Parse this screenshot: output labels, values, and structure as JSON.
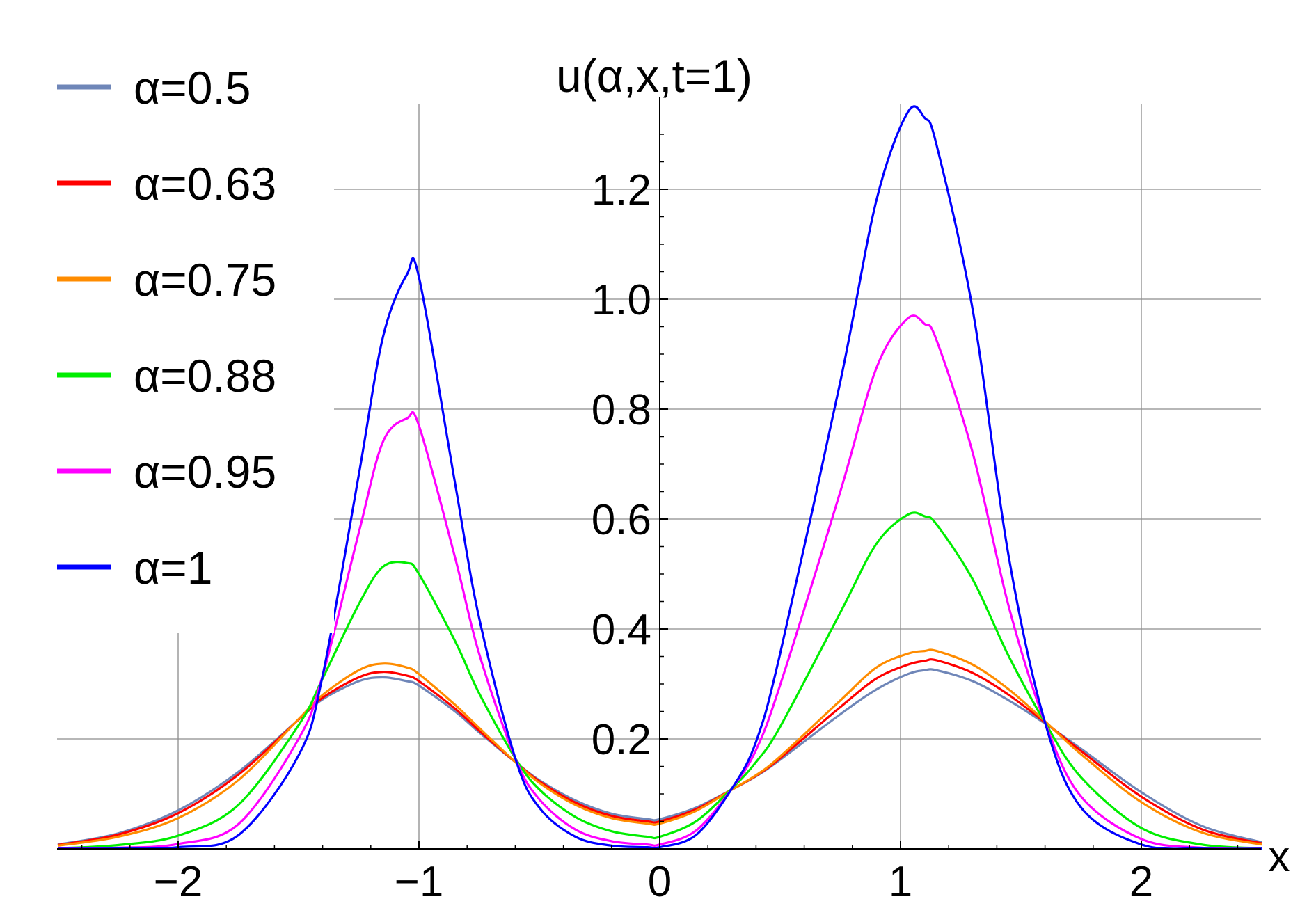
{
  "chart_data": {
    "type": "line",
    "title": "u(α,x,t=1)",
    "xlabel": "x",
    "ylabel": "",
    "xlim": [
      -2.5,
      2.5
    ],
    "ylim": [
      0,
      1.35
    ],
    "xticks": [
      -2,
      -1,
      0,
      1,
      2
    ],
    "xtick_labels": [
      "−2",
      "−1",
      "0",
      "1",
      "2"
    ],
    "yticks": [
      0.2,
      0.4,
      0.6,
      0.8,
      1.0,
      1.2
    ],
    "ytick_labels": [
      "0.2",
      "0.4",
      "0.6",
      "0.8",
      "1.0",
      "1.2"
    ],
    "grid": true,
    "legend_position": "top-left",
    "x": [
      -2.5,
      -2.25,
      -2.0,
      -1.75,
      -1.5,
      -1.4,
      -1.25,
      -1.15,
      -1.05,
      -1.0,
      -0.85,
      -0.75,
      -0.6,
      -0.5,
      -0.35,
      -0.2,
      -0.05,
      0.0,
      0.15,
      0.3,
      0.4,
      0.5,
      0.75,
      0.9,
      1.03,
      1.1,
      1.15,
      1.3,
      1.45,
      1.6,
      1.75,
      2.0,
      2.25,
      2.5
    ],
    "series": [
      {
        "name": "α=0.5",
        "color": "#6f86b8",
        "values": [
          0.008,
          0.028,
          0.07,
          0.14,
          0.235,
          0.272,
          0.305,
          0.312,
          0.305,
          0.297,
          0.25,
          0.212,
          0.158,
          0.125,
          0.088,
          0.064,
          0.054,
          0.054,
          0.075,
          0.108,
          0.132,
          0.162,
          0.245,
          0.29,
          0.318,
          0.325,
          0.325,
          0.305,
          0.27,
          0.228,
          0.182,
          0.103,
          0.042,
          0.012
        ]
      },
      {
        "name": "α=0.63",
        "color": "#ff0000",
        "values": [
          0.007,
          0.026,
          0.065,
          0.135,
          0.235,
          0.275,
          0.312,
          0.322,
          0.315,
          0.305,
          0.255,
          0.215,
          0.158,
          0.123,
          0.084,
          0.06,
          0.05,
          0.05,
          0.072,
          0.108,
          0.133,
          0.165,
          0.258,
          0.31,
          0.335,
          0.342,
          0.343,
          0.32,
          0.28,
          0.23,
          0.178,
          0.095,
          0.036,
          0.01
        ]
      },
      {
        "name": "α=0.75",
        "color": "#ff8c00",
        "values": [
          0.006,
          0.022,
          0.056,
          0.125,
          0.236,
          0.28,
          0.325,
          0.337,
          0.33,
          0.318,
          0.262,
          0.22,
          0.158,
          0.12,
          0.08,
          0.056,
          0.046,
          0.046,
          0.069,
          0.108,
          0.134,
          0.168,
          0.27,
          0.33,
          0.355,
          0.36,
          0.36,
          0.335,
          0.29,
          0.232,
          0.172,
          0.085,
          0.03,
          0.008
        ]
      },
      {
        "name": "α=0.88",
        "color": "#00ee00",
        "values": [
          0.001,
          0.007,
          0.024,
          0.08,
          0.225,
          0.31,
          0.445,
          0.513,
          0.52,
          0.5,
          0.378,
          0.283,
          0.165,
          0.108,
          0.058,
          0.032,
          0.022,
          0.022,
          0.05,
          0.11,
          0.158,
          0.222,
          0.43,
          0.555,
          0.608,
          0.605,
          0.59,
          0.49,
          0.35,
          0.23,
          0.13,
          0.038,
          0.008,
          0.001
        ]
      },
      {
        "name": "α=0.95",
        "color": "#ff00ff",
        "values": [
          0.0005,
          0.002,
          0.009,
          0.045,
          0.2,
          0.315,
          0.575,
          0.74,
          0.783,
          0.77,
          0.53,
          0.355,
          0.165,
          0.09,
          0.035,
          0.014,
          0.008,
          0.008,
          0.033,
          0.11,
          0.18,
          0.298,
          0.65,
          0.875,
          0.965,
          0.955,
          0.925,
          0.72,
          0.44,
          0.23,
          0.095,
          0.018,
          0.002,
          0.0002
        ]
      },
      {
        "name": "α=1",
        "color": "#0000ff",
        "values": [
          0.0001,
          0.0005,
          0.003,
          0.025,
          0.17,
          0.315,
          0.68,
          0.93,
          1.045,
          1.04,
          0.665,
          0.42,
          0.165,
          0.075,
          0.022,
          0.006,
          0.003,
          0.003,
          0.025,
          0.11,
          0.195,
          0.355,
          0.85,
          1.18,
          1.34,
          1.33,
          1.28,
          0.98,
          0.53,
          0.23,
          0.075,
          0.008,
          0.0005,
          0.0001
        ]
      }
    ]
  }
}
